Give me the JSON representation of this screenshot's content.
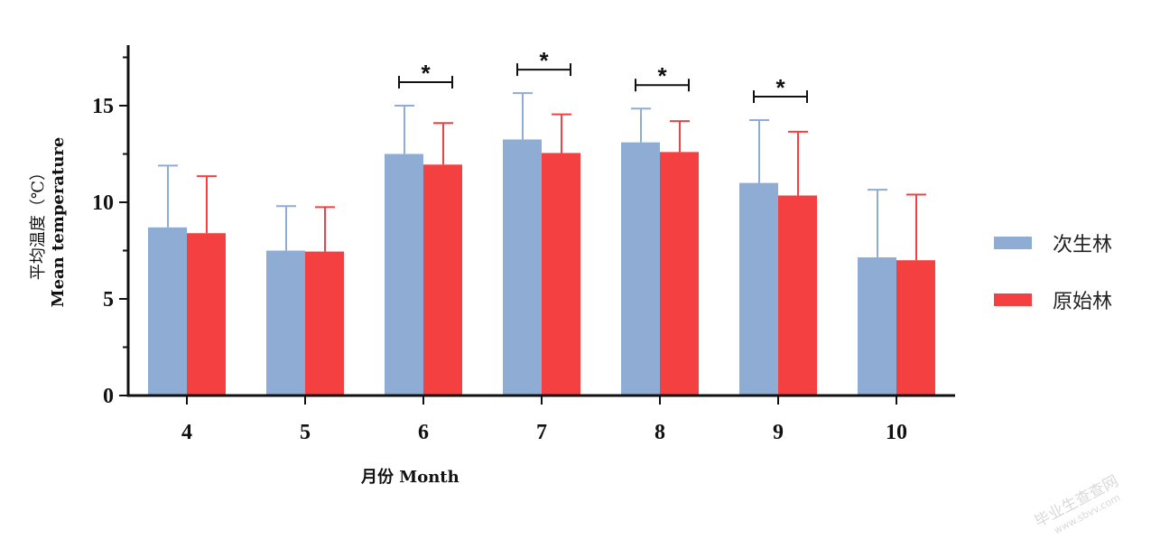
{
  "chart_data": {
    "type": "bar",
    "categories": [
      "4",
      "5",
      "6",
      "7",
      "8",
      "9",
      "10"
    ],
    "series": [
      {
        "name": "次生林",
        "color": "#8eacd4",
        "values": [
          8.7,
          7.5,
          12.5,
          13.25,
          13.1,
          11.0,
          7.15
        ],
        "errors": [
          3.2,
          2.3,
          2.5,
          2.4,
          1.75,
          3.25,
          3.5
        ]
      },
      {
        "name": "原始林",
        "color": "#f44040",
        "values": [
          8.4,
          7.45,
          11.95,
          12.55,
          12.6,
          10.35,
          7.0
        ],
        "errors": [
          2.95,
          2.3,
          2.15,
          2.0,
          1.6,
          3.3,
          3.4
        ]
      }
    ],
    "significance": [
      {
        "category": "6",
        "label": "*"
      },
      {
        "category": "7",
        "label": "*"
      },
      {
        "category": "8",
        "label": "*"
      },
      {
        "category": "9",
        "label": "*"
      }
    ],
    "xlabel": "月份 Month",
    "ylabel_line1": "平均温度（℃）",
    "ylabel_line2": "Mean temperature",
    "ylim": [
      0,
      18
    ],
    "yticks": [
      0,
      5,
      10,
      15
    ],
    "legend_position": "right",
    "grid": false
  },
  "watermark": {
    "line1": "毕业生查查网",
    "line2": "www.sbvv.com"
  }
}
